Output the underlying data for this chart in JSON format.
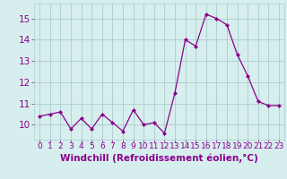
{
  "x": [
    0,
    1,
    2,
    3,
    4,
    5,
    6,
    7,
    8,
    9,
    10,
    11,
    12,
    13,
    14,
    15,
    16,
    17,
    18,
    19,
    20,
    21,
    22,
    23
  ],
  "y": [
    10.4,
    10.5,
    10.6,
    9.8,
    10.3,
    9.8,
    10.5,
    10.1,
    9.7,
    10.7,
    10.0,
    10.1,
    9.6,
    11.5,
    14.0,
    13.7,
    15.2,
    15.0,
    14.7,
    13.3,
    12.3,
    11.1,
    10.9,
    10.9
  ],
  "line_color": "#8B008B",
  "marker": "D",
  "marker_size": 2.2,
  "bg_color": "#d6eeee",
  "grid_color": "#aacccc",
  "xlabel": "Windchill (Refroidissement éolien,°C)",
  "xlabel_color": "#8B008B",
  "tick_color": "#8B008B",
  "xlim": [
    -0.5,
    23.5
  ],
  "ylim": [
    9.3,
    15.7
  ],
  "ytick_values": [
    10,
    11,
    12,
    13,
    14,
    15
  ],
  "ytick_labels": [
    "10",
    "11",
    "12",
    "13",
    "14",
    "15"
  ],
  "xtick_labels": [
    "0",
    "1",
    "2",
    "3",
    "4",
    "5",
    "6",
    "7",
    "8",
    "9",
    "10",
    "11",
    "12",
    "13",
    "14",
    "15",
    "16",
    "17",
    "18",
    "19",
    "20",
    "21",
    "22",
    "23"
  ],
  "font_size": 6.5,
  "xlabel_fontsize": 7.5
}
